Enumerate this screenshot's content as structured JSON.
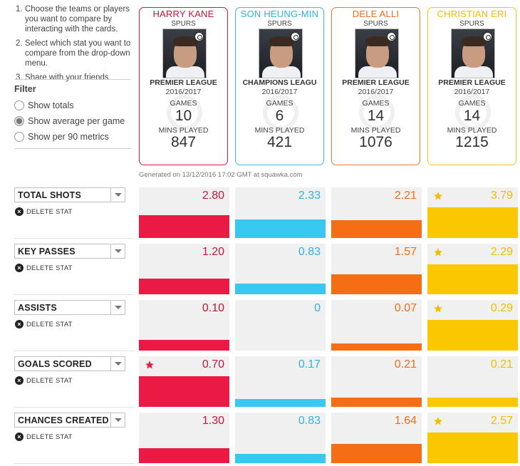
{
  "instructions": [
    {
      "num": "1.",
      "text": "Choose the teams or players you want to compare by interacting with the cards."
    },
    {
      "num": "2.",
      "text": "Select which stat you want to compare from the drop-down menu."
    },
    {
      "num": "3.",
      "text": "Share with your friends."
    }
  ],
  "filter": {
    "title": "Filter",
    "options": [
      {
        "label": "Show totals",
        "selected": false
      },
      {
        "label": "Show average per game",
        "selected": true
      },
      {
        "label": "Show per 90 metrics",
        "selected": false
      }
    ]
  },
  "delete_stat_label": "DELETE STAT",
  "generated_text": "Generated on 13/12/2016 17:02 GMT at squawka.com",
  "players": [
    {
      "name": "HARRY KANE",
      "team": "SPURS",
      "competition": "PREMIER LEAGUE",
      "season": "2016/2017",
      "games_label": "GAMES",
      "games": "10",
      "mins_label": "MINS PLAYED",
      "mins": "847",
      "color": "#e3173e",
      "name_color": "#c8163a",
      "bar_color": "#ea1a44"
    },
    {
      "name": "SON HEUNG-MIN",
      "team": "SPURS",
      "competition": "CHAMPIONS LEAGU",
      "season": "2016/2017",
      "games_label": "GAMES",
      "games": "6",
      "mins_label": "MINS PLAYED",
      "mins": "421",
      "color": "#39bde4",
      "name_color": "#2fb3dc",
      "bar_color": "#39c8f2"
    },
    {
      "name": "DELE ALLI",
      "team": "SPURS",
      "competition": "PREMIER LEAGUE",
      "season": "2016/2017",
      "games_label": "GAMES",
      "games": "14",
      "mins_label": "MINS PLAYED",
      "mins": "1076",
      "color": "#f07a2d",
      "name_color": "#ec6e1e",
      "bar_color": "#f56e16"
    },
    {
      "name": "CHRISTIAN ERI",
      "team": "SPURS",
      "competition": "PREMIER LEAGUE",
      "season": "2016/2017",
      "games_label": "GAMES",
      "games": "14",
      "mins_label": "MINS PLAYED",
      "mins": "1215",
      "color": "#f6c712",
      "name_color": "#f1bd00",
      "bar_color": "#fbc700"
    }
  ],
  "stats": [
    {
      "label": "TOTAL SHOTS",
      "values": [
        "2.80",
        "2.33",
        "2.21",
        "3.79"
      ],
      "fill": [
        0.45,
        0.37,
        0.35,
        0.6
      ],
      "best": 3
    },
    {
      "label": "KEY PASSES",
      "values": [
        "1.20",
        "0.83",
        "1.57",
        "2.29"
      ],
      "fill": [
        0.31,
        0.21,
        0.4,
        0.59
      ],
      "best": 3
    },
    {
      "label": "ASSISTS",
      "values": [
        "0.10",
        "0",
        "0.07",
        "0.29"
      ],
      "fill": [
        0.21,
        0,
        0.14,
        0.6
      ],
      "best": 3
    },
    {
      "label": "GOALS SCORED",
      "values": [
        "0.70",
        "0.17",
        "0.21",
        "0.21"
      ],
      "fill": [
        0.6,
        0.15,
        0.18,
        0.18
      ],
      "best": 0
    },
    {
      "label": "CHANCES CREATED",
      "values": [
        "1.30",
        "0.83",
        "1.64",
        "2.57"
      ],
      "fill": [
        0.3,
        0.19,
        0.38,
        0.6
      ],
      "best": 3
    }
  ],
  "icons": {
    "star": "star-icon",
    "dropdown": "chevron-down-icon",
    "delete": "close-icon",
    "club_badge": "club-badge-icon"
  }
}
